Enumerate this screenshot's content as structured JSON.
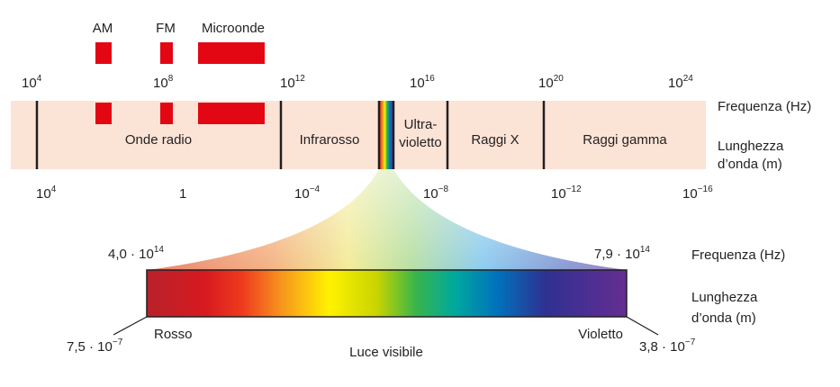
{
  "bands_top": [
    {
      "id": "am",
      "label": "AM"
    },
    {
      "id": "fm",
      "label": "FM"
    },
    {
      "id": "micro",
      "label": "Microonde"
    }
  ],
  "frequency_ticks": [
    {
      "base": "10",
      "exp": "4"
    },
    {
      "base": "10",
      "exp": "8"
    },
    {
      "base": "10",
      "exp": "12"
    },
    {
      "base": "10",
      "exp": "16"
    },
    {
      "base": "10",
      "exp": "20"
    },
    {
      "base": "10",
      "exp": "24"
    }
  ],
  "wavelength_ticks": [
    {
      "base": "10",
      "exp": "4"
    },
    {
      "base": "1",
      "exp": ""
    },
    {
      "base": "10",
      "exp": "−4"
    },
    {
      "base": "10",
      "exp": "−8"
    },
    {
      "base": "10",
      "exp": "−12"
    },
    {
      "base": "10",
      "exp": "−16"
    }
  ],
  "regions": [
    {
      "id": "radio",
      "label": "Onde radio"
    },
    {
      "id": "ir",
      "label": "Infrarosso"
    },
    {
      "id": "uv",
      "label_line1": "Ultra-",
      "label_line2": "violetto"
    },
    {
      "id": "xray",
      "label": "Raggi X"
    },
    {
      "id": "gamma",
      "label": "Raggi gamma"
    }
  ],
  "axis_labels": {
    "frequency": "Frequenza (Hz)",
    "wavelength_line1": "Lunghezza",
    "wavelength_line2": "d’onda (m)"
  },
  "visible": {
    "title": "Luce visibile",
    "freq_low": {
      "mantissa": "4,0 · 10",
      "exp": "14"
    },
    "freq_high": {
      "mantissa": "7,9 · 10",
      "exp": "14"
    },
    "wl_low": {
      "mantissa": "7,5 · 10",
      "exp": "−7"
    },
    "wl_high": {
      "mantissa": "3,8 · 10",
      "exp": "−7"
    },
    "left_color": "Rosso",
    "right_color": "Violetto"
  },
  "colors": {
    "band_fill": "#fbe3d6",
    "marker_red": "#e30613",
    "divider": "#231f20"
  }
}
